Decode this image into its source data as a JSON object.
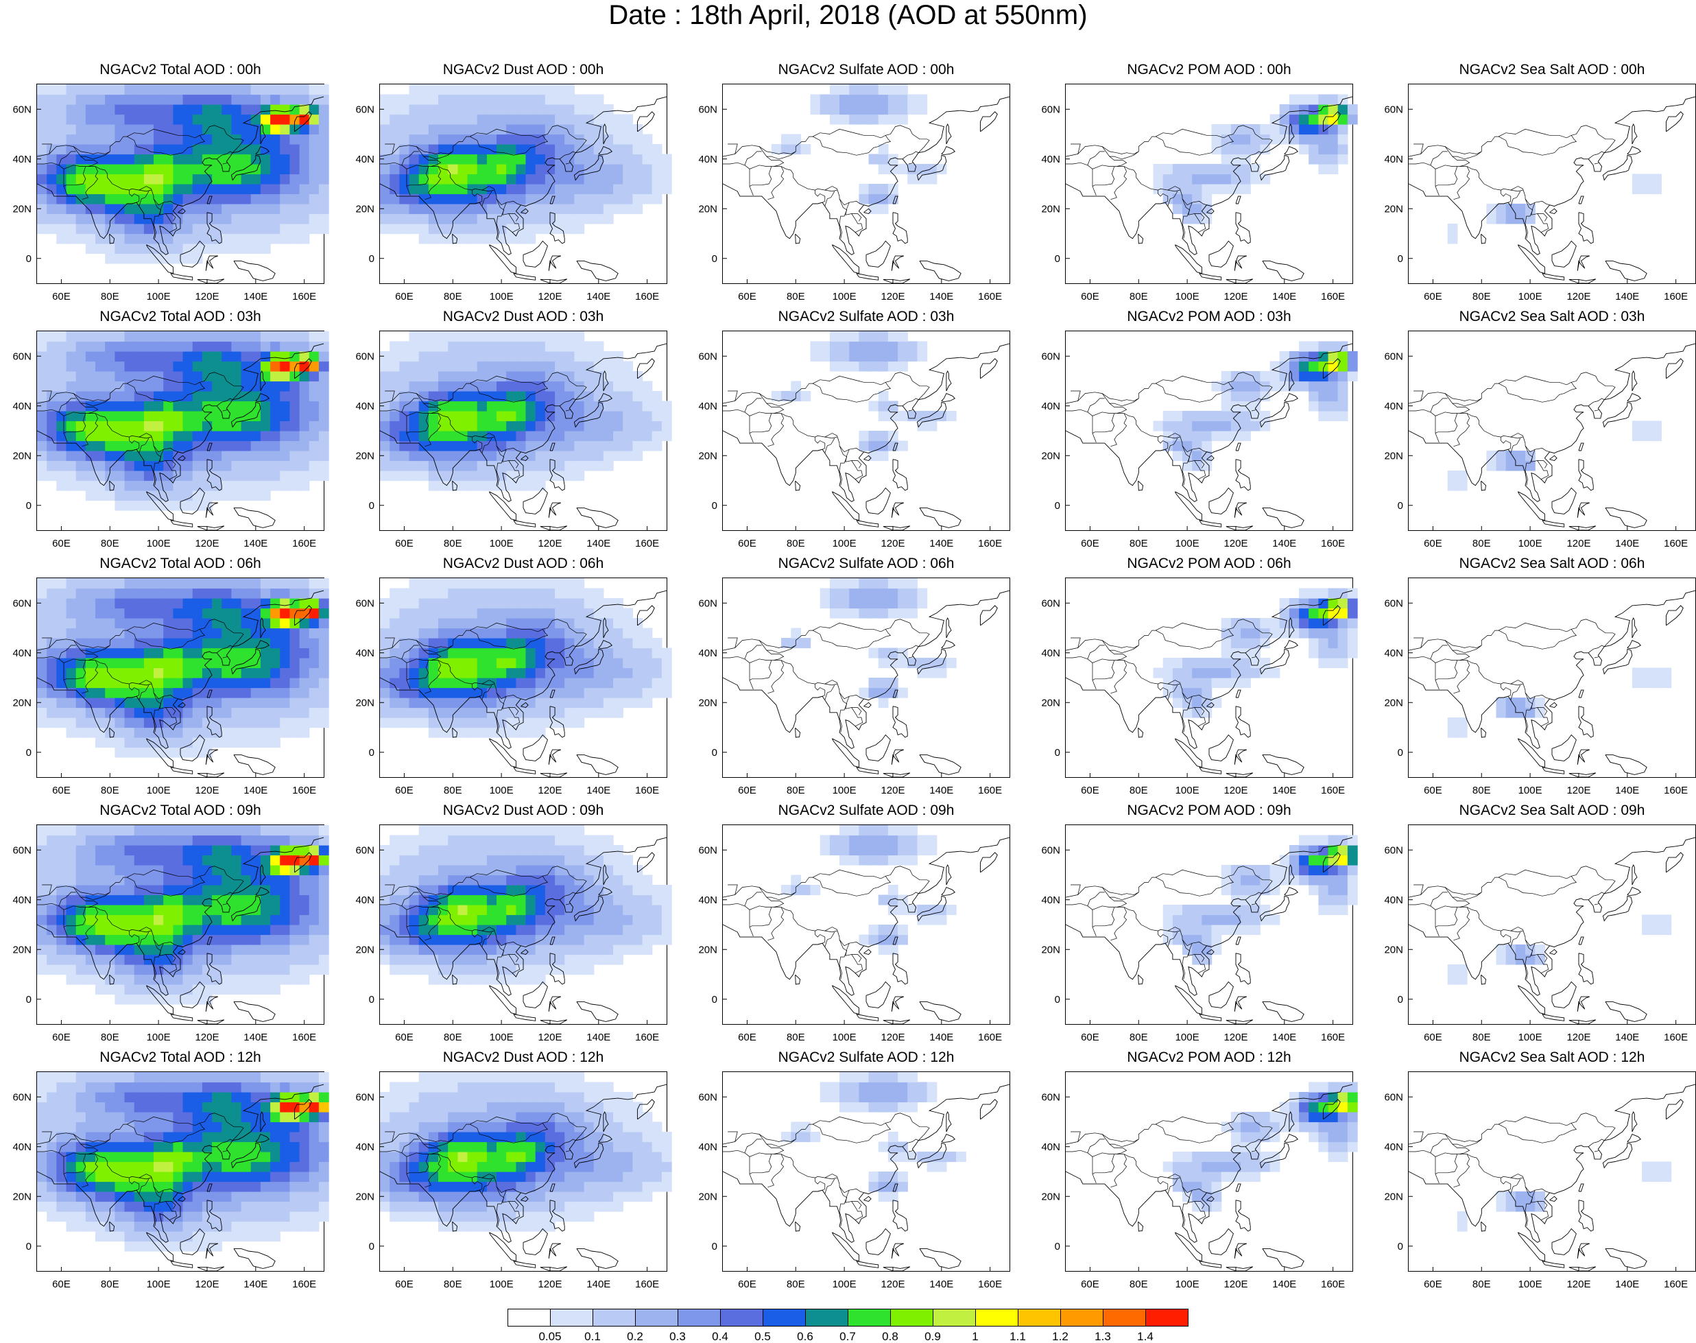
{
  "title": "Date : 18th April, 2018 (AOD at 550nm)",
  "lon_ticks": [
    "60E",
    "80E",
    "100E",
    "120E",
    "140E",
    "160E"
  ],
  "lat_ticks": [
    "60N",
    "40N",
    "20N",
    "0"
  ],
  "map_extent": {
    "lon": [
      50,
      168
    ],
    "lat": [
      -10,
      70
    ]
  },
  "panels": [
    {
      "title": "NGACv2 Total AOD : 00h",
      "species": "total"
    },
    {
      "title": "NGACv2 Dust AOD : 00h",
      "species": "dust"
    },
    {
      "title": "NGACv2 Sulfate AOD : 00h",
      "species": "sulfate"
    },
    {
      "title": "NGACv2 POM AOD : 00h",
      "species": "pom"
    },
    {
      "title": "NGACv2 Sea Salt AOD : 00h",
      "species": "seasalt"
    },
    {
      "title": "NGACv2 Total AOD : 03h",
      "species": "total"
    },
    {
      "title": "NGACv2 Dust AOD : 03h",
      "species": "dust"
    },
    {
      "title": "NGACv2 Sulfate AOD : 03h",
      "species": "sulfate"
    },
    {
      "title": "NGACv2 POM AOD : 03h",
      "species": "pom"
    },
    {
      "title": "NGACv2 Sea Salt AOD : 03h",
      "species": "seasalt"
    },
    {
      "title": "NGACv2 Total AOD : 06h",
      "species": "total"
    },
    {
      "title": "NGACv2 Dust AOD : 06h",
      "species": "dust"
    },
    {
      "title": "NGACv2 Sulfate AOD : 06h",
      "species": "sulfate"
    },
    {
      "title": "NGACv2 POM AOD : 06h",
      "species": "pom"
    },
    {
      "title": "NGACv2 Sea Salt AOD : 06h",
      "species": "seasalt"
    },
    {
      "title": "NGACv2 Total AOD : 09h",
      "species": "total"
    },
    {
      "title": "NGACv2 Dust AOD : 09h",
      "species": "dust"
    },
    {
      "title": "NGACv2 Sulfate AOD : 09h",
      "species": "sulfate"
    },
    {
      "title": "NGACv2 POM AOD : 09h",
      "species": "pom"
    },
    {
      "title": "NGACv2 Sea Salt  AOD : 09h",
      "species": "seasalt"
    },
    {
      "title": "NGACv2 Total AOD  : 12h",
      "species": "total"
    },
    {
      "title": "NGACv2 Dust AOD : 12h",
      "species": "dust"
    },
    {
      "title": "NGACv2 Sulfate AOD : 12h",
      "species": "sulfate"
    },
    {
      "title": "NGACv2 POM  AOD : 12h",
      "species": "pom"
    },
    {
      "title": "NGACv2 Sea Salt  AOD : 12h",
      "species": "seasalt"
    }
  ],
  "colorbar": {
    "labels": [
      "0.05",
      "0.1",
      "0.2",
      "0.3",
      "0.4",
      "0.5",
      "0.6",
      "0.7",
      "0.8",
      "0.9",
      "1",
      "1.1",
      "1.2",
      "1.3",
      "1.4"
    ],
    "colors": [
      "#ffffff",
      "#d6e2fa",
      "#b9cbf5",
      "#9db3f0",
      "#7f97ea",
      "#5a6ee0",
      "#1a5ee8",
      "#0d8f8f",
      "#2ee22e",
      "#7ef000",
      "#c2f040",
      "#ffff00",
      "#ffc400",
      "#ff9a00",
      "#ff6a00",
      "#ff1e00"
    ]
  }
}
